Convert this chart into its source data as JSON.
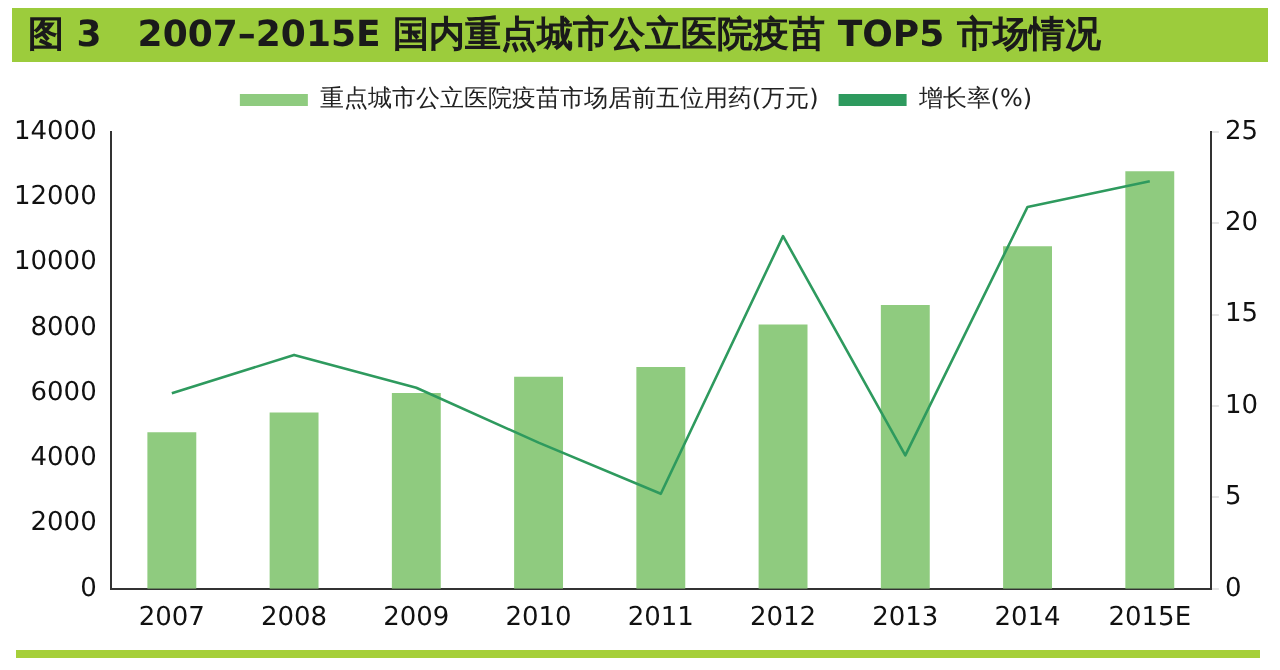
{
  "chart_data": {
    "type": "bar",
    "title": "图 3　2007–2015E 国内重点城市公立医院疫苗 TOP5 市场情况",
    "categories": [
      "2007",
      "2008",
      "2009",
      "2010",
      "2011",
      "2012",
      "2013",
      "2014",
      "2015E"
    ],
    "series": [
      {
        "name": "重点城市公立医院疫苗市场居前五位用药(万元)",
        "color": "#8fcb7f",
        "values": [
          4800,
          5400,
          6000,
          6500,
          6800,
          8100,
          8700,
          10500,
          12800
        ]
      },
      {
        "name": "增长率(%)",
        "type": "line",
        "axis": "y2",
        "color": "#2e9a5e",
        "values": [
          10.7,
          12.8,
          11.0,
          8.0,
          5.2,
          19.3,
          7.3,
          20.9,
          22.3
        ]
      }
    ],
    "ylim": [
      0,
      14000
    ],
    "yticks": [
      0,
      2000,
      4000,
      6000,
      8000,
      10000,
      12000,
      14000
    ],
    "y2lim": [
      0,
      25
    ],
    "y2ticks": [
      0,
      5,
      10,
      15,
      20,
      25
    ],
    "grid": false,
    "legend": "top",
    "marker": "none"
  }
}
